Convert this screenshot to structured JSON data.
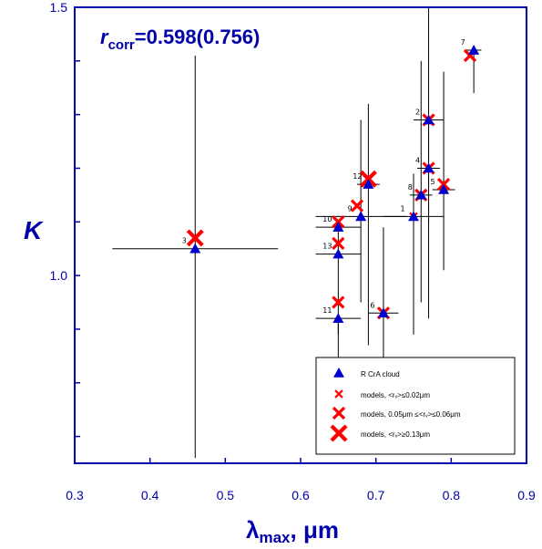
{
  "chart_data": {
    "type": "scatter",
    "xlabel_symbol": "λ",
    "xlabel_sub": "max",
    "xlabel_rest": ", μm",
    "ylabel": "K",
    "xlim": [
      0.3,
      0.9
    ],
    "ylim": [
      0.65,
      1.5
    ],
    "x_ticks": [
      "0.3",
      "0.4",
      "0.5",
      "0.6",
      "0.7",
      "0.8",
      "0.9"
    ],
    "y_ticks": [
      "1.0",
      "1.5"
    ],
    "y_tick_values": [
      1.0,
      1.5
    ],
    "annotation": {
      "prefix": "r",
      "sub": "corr",
      "value": "=0.598(0.756)"
    },
    "legend": {
      "position": "bottom-right",
      "entries": [
        {
          "marker": "triangle",
          "label": "R CrA cloud"
        },
        {
          "marker": "x-small",
          "label": "models, <rᵥ>≤0.02μm"
        },
        {
          "marker": "x-medium",
          "label": "models, 0.05μm ≤<rᵥ>≤0.06μm"
        },
        {
          "marker": "x-large",
          "label": "models, <rᵥ>≥0.13μm"
        }
      ]
    },
    "observations": [
      {
        "label": "1",
        "x": 0.75,
        "y": 1.11,
        "xerr": 0.04,
        "yerr_low": 0.22,
        "yerr_high": 0.08
      },
      {
        "label": "2",
        "x": 0.77,
        "y": 1.29,
        "xerr": 0.02,
        "yerr_low": 0.19,
        "yerr_high": 0.21
      },
      {
        "label": "3",
        "x": 0.46,
        "y": 1.05,
        "xerr": 0.11,
        "yerr_low": 0.39,
        "yerr_high": 0.36
      },
      {
        "label": "4",
        "x": 0.77,
        "y": 1.2,
        "xerr": 0.015,
        "yerr_low": 0.28,
        "yerr_high": 0.1
      },
      {
        "label": "5",
        "x": 0.79,
        "y": 1.16,
        "xerr": 0.015,
        "yerr_low": 0.15,
        "yerr_high": 0.22
      },
      {
        "label": "6",
        "x": 0.71,
        "y": 0.93,
        "xerr": 0.02,
        "yerr_low": 0.23,
        "yerr_high": 0.16
      },
      {
        "label": "7",
        "x": 0.83,
        "y": 1.42,
        "xerr": 0.01,
        "yerr_low": 0.08,
        "yerr_high": 0.0
      },
      {
        "label": "8",
        "x": 0.76,
        "y": 1.15,
        "xerr": 0.015,
        "yerr_low": 0.2,
        "yerr_high": 0.25
      },
      {
        "label": "9",
        "x": 0.68,
        "y": 1.11,
        "xerr": 0.06,
        "yerr_low": 0.16,
        "yerr_high": 0.18
      },
      {
        "label": "10",
        "x": 0.65,
        "y": 1.09,
        "xerr": 0.03,
        "yerr_low": 0.2,
        "yerr_high": 0.0
      },
      {
        "label": "11",
        "x": 0.65,
        "y": 0.92,
        "xerr": 0.03,
        "yerr_low": 0.22,
        "yerr_high": 0.0
      },
      {
        "label": "12",
        "x": 0.69,
        "y": 1.17,
        "xerr": 0.015,
        "yerr_low": 0.3,
        "yerr_high": 0.15
      },
      {
        "label": "13",
        "x": 0.65,
        "y": 1.04,
        "xerr": 0.03,
        "yerr_low": 0.0,
        "yerr_high": 0.0
      }
    ],
    "models": [
      {
        "x": 0.46,
        "y": 1.07,
        "size": "large"
      },
      {
        "x": 0.65,
        "y": 1.1,
        "size": "medium"
      },
      {
        "x": 0.65,
        "y": 1.06,
        "size": "medium"
      },
      {
        "x": 0.65,
        "y": 0.95,
        "size": "medium"
      },
      {
        "x": 0.675,
        "y": 1.13,
        "size": "medium"
      },
      {
        "x": 0.69,
        "y": 1.18,
        "size": "large"
      },
      {
        "x": 0.71,
        "y": 0.93,
        "size": "medium"
      },
      {
        "x": 0.75,
        "y": 1.11,
        "size": "small"
      },
      {
        "x": 0.76,
        "y": 1.15,
        "size": "medium"
      },
      {
        "x": 0.77,
        "y": 1.29,
        "size": "medium"
      },
      {
        "x": 0.77,
        "y": 1.2,
        "size": "medium"
      },
      {
        "x": 0.79,
        "y": 1.17,
        "size": "medium"
      },
      {
        "x": 0.825,
        "y": 1.41,
        "size": "medium"
      }
    ],
    "colors": {
      "axis": "#0000aa",
      "observation": "#0000cc",
      "model": "#ff0000",
      "errorbar": "#000000"
    }
  }
}
